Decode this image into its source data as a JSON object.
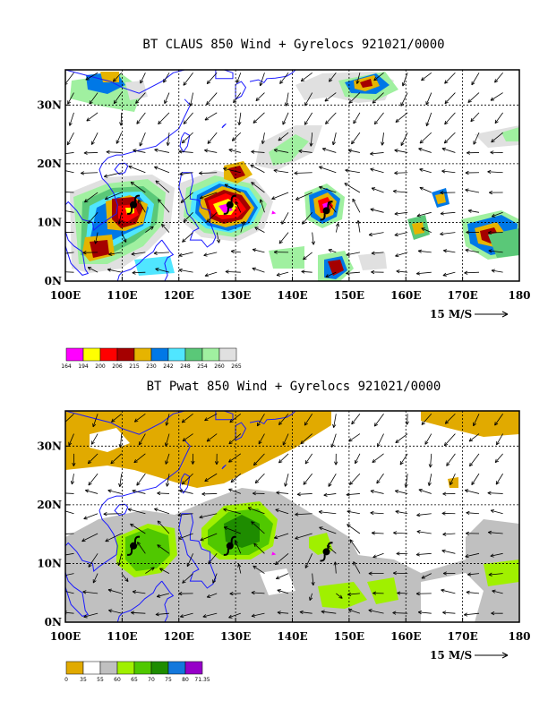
{
  "colors": {
    "coast": "#1a1aff",
    "frame": "#000000",
    "cb1": [
      "#ff00ff",
      "#ffff00",
      "#ff0000",
      "#a50000",
      "#e6b400",
      "#0078e6",
      "#50e6ff",
      "#5ac878",
      "#a0f0a0",
      "#e0e0e0"
    ],
    "cb2": [
      "#e1aa00",
      "#ffffff",
      "#c0c0c0",
      "#a0f000",
      "#50c800",
      "#1e8c00",
      "#1478dc",
      "#9600c8"
    ],
    "tc_magenta": "#ff00ff"
  },
  "panel1": {
    "title": "BT CLAUS 850 Wind + Gyrelocs 921021/0000",
    "xticks": [
      "100E",
      "110E",
      "120E",
      "130E",
      "140E",
      "150E",
      "160E",
      "170E",
      "180"
    ],
    "yticks": [
      "0N",
      "10N",
      "20N",
      "30N"
    ],
    "ref_vector_label": "15 M/S",
    "colorbar_labels": [
      "164",
      "194",
      "200",
      "206",
      "215",
      "230",
      "242",
      "248",
      "254",
      "260",
      "265"
    ]
  },
  "panel2": {
    "title": "BT Pwat 850 Wind + Gyrelocs 921021/0000",
    "xticks": [
      "100E",
      "110E",
      "120E",
      "130E",
      "140E",
      "150E",
      "160E",
      "170E",
      "180"
    ],
    "yticks": [
      "0N",
      "10N",
      "20N",
      "30N"
    ],
    "ref_vector_label": "15 M/S",
    "colorbar_labels": [
      "0",
      "35",
      "55",
      "60",
      "65",
      "70",
      "75",
      "80",
      "71.35"
    ]
  },
  "storms": [
    {
      "lon": 112,
      "lat": 13
    },
    {
      "lon": 129,
      "lat": 13
    },
    {
      "lon": 146,
      "lat": 12
    }
  ],
  "icons": {
    "storm": "tropical-cyclone-icon",
    "ref_arrow": "arrow-right-icon"
  }
}
